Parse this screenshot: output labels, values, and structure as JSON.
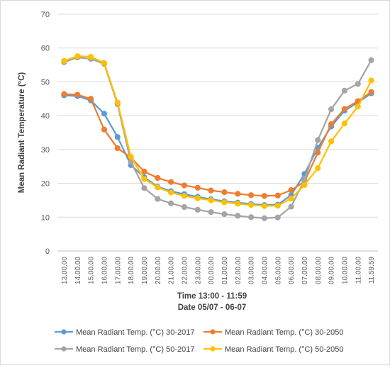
{
  "chart_data": {
    "type": "line",
    "ylabel": "Mean Radiant Temperature  (°C)",
    "xlabel_lines": [
      "Time 13:00 - 11:59",
      "Date 05/07 - 06-07"
    ],
    "ylim": [
      0,
      70
    ],
    "yticks": [
      0,
      10,
      20,
      30,
      40,
      50,
      60,
      70
    ],
    "grid": true,
    "legend_position": "bottom",
    "categories": [
      "13.00.00",
      "14.00.00",
      "15.00.00",
      "16.00.00",
      "17.00.00",
      "18.00.00",
      "19.00.00",
      "20.00.00",
      "21.00.00",
      "22.00.00",
      "23.00.00",
      "00.00.00",
      "01.00.00",
      "02.00.00",
      "03.00.00",
      "04.00.00",
      "05.00.00",
      "06.00.00",
      "07.00.00",
      "08.00.00",
      "09.00.00",
      "10.00.00",
      "11.00.00",
      "11.59.59"
    ],
    "series": [
      {
        "name": "Mean Radiant Temp.  (°C) 30-2017",
        "color": "#5b9bd5",
        "values": [
          46.0,
          45.8,
          44.5,
          40.6,
          33.7,
          25.4,
          21.8,
          19.0,
          17.7,
          16.8,
          16.0,
          15.3,
          14.7,
          14.3,
          13.9,
          13.6,
          13.7,
          16.5,
          22.8,
          30.5,
          36.8,
          41.5,
          43.9,
          46.6
        ]
      },
      {
        "name": "Mean Radiant Temp.  (°C) 30-2050",
        "color": "#ed7d31",
        "values": [
          46.4,
          46.2,
          45.0,
          35.9,
          30.4,
          27.6,
          23.5,
          21.6,
          20.4,
          19.4,
          18.7,
          17.9,
          17.4,
          16.9,
          16.5,
          16.3,
          16.4,
          18.0,
          20.5,
          29.1,
          37.5,
          42.0,
          44.3,
          47.0
        ]
      },
      {
        "name": "Mean Radiant Temp.  (°C) 50-2017",
        "color": "#a5a5a5",
        "values": [
          55.8,
          57.2,
          56.8,
          55.3,
          43.4,
          26.3,
          18.6,
          15.4,
          14.1,
          13.0,
          12.2,
          11.5,
          10.9,
          10.4,
          10.0,
          9.7,
          9.9,
          13.1,
          21.0,
          32.8,
          41.9,
          47.4,
          49.4,
          56.4
        ]
      },
      {
        "name": "Mean Radiant Temp.  (°C) 50-2050",
        "color": "#ffc000",
        "values": [
          56.2,
          57.6,
          57.4,
          55.6,
          43.9,
          27.9,
          21.3,
          18.8,
          17.3,
          16.3,
          15.6,
          15.0,
          14.4,
          14.0,
          13.6,
          13.3,
          13.4,
          15.5,
          19.5,
          24.5,
          32.4,
          37.7,
          42.7,
          50.4
        ]
      }
    ]
  }
}
